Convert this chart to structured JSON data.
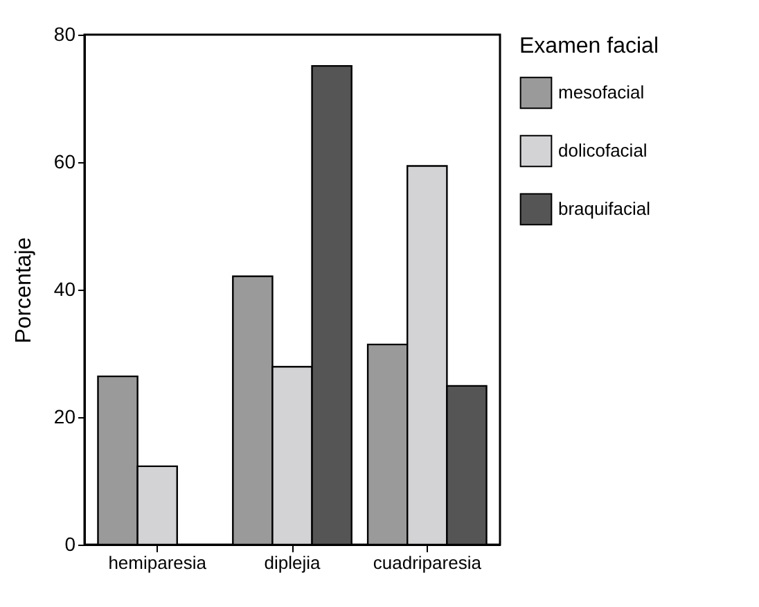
{
  "chart_data": {
    "type": "bar",
    "ylabel": "Porcentaje",
    "legend_title": "Examen facial",
    "categories": [
      "hemiparesia",
      "diplejia",
      "cuadriparesia"
    ],
    "series": [
      {
        "name": "mesofacial",
        "color": "#9a9a9a",
        "values": [
          26.4,
          42.1,
          31.4
        ]
      },
      {
        "name": "dolicofacial",
        "color": "#d3d3d5",
        "values": [
          12.3,
          27.9,
          59.4
        ]
      },
      {
        "name": "braquifacial",
        "color": "#555555",
        "values": [
          null,
          75.1,
          24.9
        ]
      }
    ],
    "ylim": [
      0,
      80
    ],
    "yticks": [
      0,
      20,
      40,
      60,
      80
    ],
    "grid": false,
    "legend": "right"
  }
}
